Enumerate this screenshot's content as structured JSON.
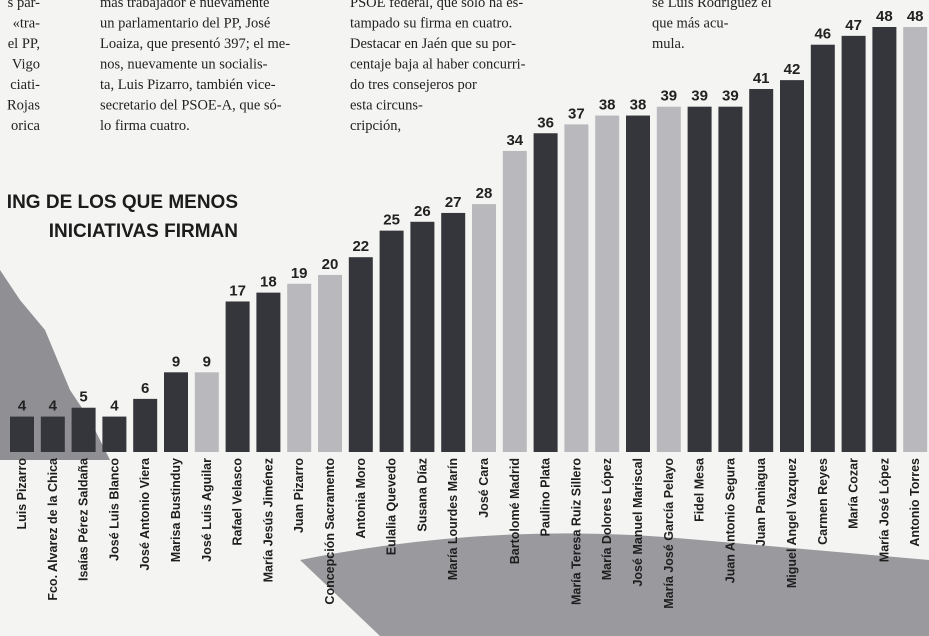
{
  "chart_data": {
    "type": "bar",
    "title": [
      "ING DE LOS QUE MENOS",
      "INICIATIVAS FIRMAN"
    ],
    "article_columns": [
      [
        "s par-",
        "«tra-",
        "el PP,",
        "Vigo",
        "ciati-",
        "Rojas",
        "orica"
      ],
      [
        "más trabajador e nuevamente",
        "un parlamentario del PP, José",
        "Loaiza, que presentó 397; el me-",
        "nos, nuevamente un socialis-",
        "ta, Luis Pizarro, también vice-",
        "secretario del PSOE-A, que só-",
        "lo firma cuatro."
      ],
      [
        "PSOE federal, que sólo ha es-",
        "tampado su firma en cuatro.",
        "Destacar en Jaén que su por-",
        "centaje baja al haber concurri-",
        "do tres consejeros por",
        "esta circuns-",
        "cripción,"
      ],
      [
        "se Luis Rodríguez el",
        "que más acu-",
        "mula."
      ]
    ],
    "categories": [
      "Luis Pizarro",
      "Fco. Alvarez de la Chica",
      "Isaías Pérez Saldaña",
      "José Luis Blanco",
      "José Antonio Viera",
      "Marisa Bustinduy",
      "José Luis Aguilar",
      "Rafael Velasco",
      "María Jesús Jiménez",
      "Juan Pizarro",
      "Concepción Sacramento",
      "Antonia Moro",
      "Eulalia Quevedo",
      "Susana Díaz",
      "María Lourdes Marín",
      "José Cara",
      "Bartolomé Madrid",
      "Paulino Plata",
      "María Teresa Ruiz Sillero",
      "María Dolores López",
      "José Manuel Mariscal",
      "María José García Pelayo",
      "Fidel Mesa",
      "Juan Antonio Segura",
      "Juan Paniagua",
      "Miguel Angel Vazquez",
      "Carmen Reyes",
      "María Cozar",
      "María José López",
      "Antonio Torres"
    ],
    "values": [
      4,
      4,
      5,
      4,
      6,
      9,
      9,
      17,
      18,
      19,
      20,
      22,
      25,
      26,
      27,
      28,
      34,
      36,
      37,
      38,
      38,
      39,
      39,
      39,
      41,
      42,
      46,
      47,
      48,
      48
    ],
    "colors": [
      "#35363b",
      "#35363b",
      "#35363b",
      "#35363b",
      "#35363b",
      "#35363b",
      "#b9b9bd",
      "#35363b",
      "#35363b",
      "#b9b9bd",
      "#b9b9bd",
      "#35363b",
      "#35363b",
      "#35363b",
      "#35363b",
      "#b9b9bd",
      "#b9b9bd",
      "#35363b",
      "#b9b9bd",
      "#b9b9bd",
      "#35363b",
      "#b9b9bd",
      "#35363b",
      "#35363b",
      "#35363b",
      "#35363b",
      "#35363b",
      "#35363b",
      "#35363b",
      "#b9b9bd"
    ],
    "ylim": [
      0,
      48
    ]
  }
}
